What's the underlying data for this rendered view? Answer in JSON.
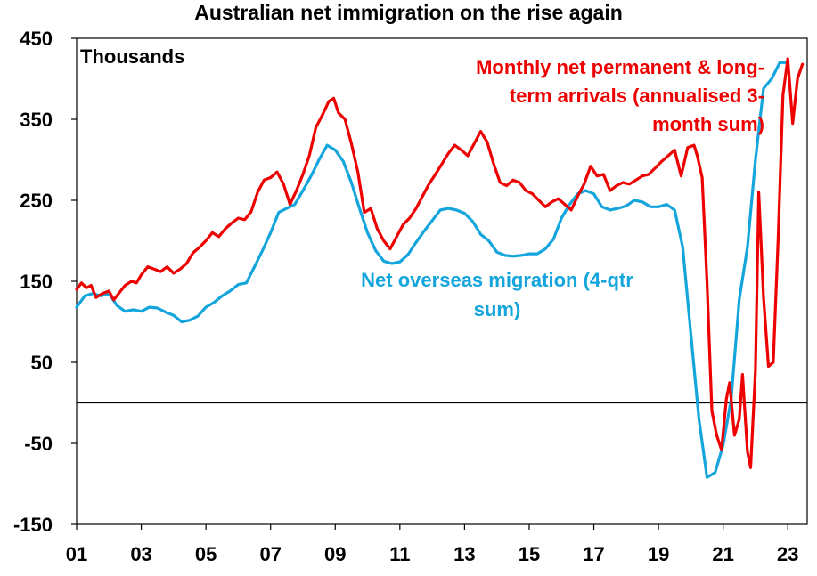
{
  "chart_data": {
    "type": "line",
    "title": "Australian net immigration on the rise again",
    "unit_label": "Thousands",
    "xlabel": "",
    "ylabel": "",
    "ylim": [
      -150,
      450
    ],
    "xlim": [
      2001,
      2023.6
    ],
    "y_ticks": [
      450,
      350,
      250,
      150,
      50,
      -50,
      -150
    ],
    "y_tick_labels": [
      "450",
      "350",
      "250",
      "150",
      "50",
      "-50",
      "-150"
    ],
    "x_ticks": [
      2001,
      2003,
      2005,
      2007,
      2009,
      2011,
      2013,
      2015,
      2017,
      2019,
      2021,
      2023
    ],
    "x_tick_labels": [
      "01",
      "03",
      "05",
      "07",
      "09",
      "11",
      "13",
      "15",
      "17",
      "19",
      "21",
      "23"
    ],
    "zero_line": true,
    "grid": false,
    "series": [
      {
        "name": "Monthly net permanent & long-term arrivals (annualised 3-month sum)",
        "label_lines": [
          "Monthly net permanent & long-",
          "term arrivals (annualised 3-",
          "month sum)"
        ],
        "color": "#ee0000",
        "x": [
          2001.0,
          2001.15,
          2001.3,
          2001.45,
          2001.6,
          2001.8,
          2002.0,
          2002.15,
          2002.3,
          2002.5,
          2002.7,
          2002.85,
          2003.0,
          2003.2,
          2003.4,
          2003.6,
          2003.8,
          2004.0,
          2004.2,
          2004.4,
          2004.6,
          2004.8,
          2005.0,
          2005.2,
          2005.4,
          2005.6,
          2005.8,
          2006.0,
          2006.2,
          2006.4,
          2006.6,
          2006.8,
          2007.0,
          2007.2,
          2007.4,
          2007.6,
          2007.8,
          2008.0,
          2008.2,
          2008.4,
          2008.6,
          2008.8,
          2008.95,
          2009.1,
          2009.3,
          2009.5,
          2009.7,
          2009.9,
          2010.1,
          2010.3,
          2010.5,
          2010.7,
          2010.9,
          2011.1,
          2011.3,
          2011.5,
          2011.7,
          2011.9,
          2012.1,
          2012.3,
          2012.5,
          2012.7,
          2012.9,
          2013.1,
          2013.3,
          2013.5,
          2013.7,
          2013.9,
          2014.1,
          2014.3,
          2014.5,
          2014.7,
          2014.9,
          2015.1,
          2015.3,
          2015.5,
          2015.7,
          2015.9,
          2016.1,
          2016.3,
          2016.5,
          2016.7,
          2016.9,
          2017.1,
          2017.3,
          2017.5,
          2017.7,
          2017.9,
          2018.1,
          2018.3,
          2018.5,
          2018.7,
          2018.9,
          2019.1,
          2019.3,
          2019.5,
          2019.7,
          2019.9,
          2020.1,
          2020.2,
          2020.35,
          2020.5,
          2020.65,
          2020.8,
          2020.95,
          2021.1,
          2021.2,
          2021.35,
          2021.5,
          2021.6,
          2021.75,
          2021.85,
          2022.0,
          2022.1,
          2022.25,
          2022.4,
          2022.55,
          2022.7,
          2022.85,
          2023.0,
          2023.15,
          2023.3,
          2023.45
        ],
        "values": [
          140,
          148,
          142,
          145,
          130,
          135,
          138,
          127,
          135,
          145,
          150,
          148,
          158,
          168,
          165,
          162,
          168,
          160,
          165,
          172,
          185,
          192,
          200,
          210,
          205,
          215,
          222,
          228,
          226,
          236,
          260,
          275,
          278,
          285,
          270,
          245,
          262,
          282,
          305,
          340,
          355,
          372,
          376,
          358,
          350,
          320,
          285,
          235,
          240,
          215,
          200,
          190,
          205,
          220,
          228,
          240,
          255,
          270,
          282,
          295,
          308,
          318,
          312,
          305,
          320,
          335,
          322,
          295,
          272,
          268,
          275,
          272,
          262,
          258,
          250,
          242,
          248,
          252,
          245,
          238,
          255,
          270,
          292,
          280,
          282,
          262,
          268,
          272,
          270,
          275,
          280,
          282,
          290,
          298,
          305,
          312,
          280,
          315,
          318,
          305,
          278,
          150,
          -10,
          -40,
          -58,
          5,
          25,
          -40,
          -20,
          35,
          -60,
          -80,
          40,
          260,
          130,
          45,
          50,
          200,
          380,
          425,
          345,
          400,
          418
        ]
      },
      {
        "name": "Net overseas migration (4-qtr sum)",
        "label_lines": [
          "Net overseas migration (4-qtr",
          "sum)"
        ],
        "color": "#14a5dc",
        "x": [
          2001.0,
          2001.25,
          2001.5,
          2001.75,
          2002.0,
          2002.25,
          2002.5,
          2002.75,
          2003.0,
          2003.25,
          2003.5,
          2003.75,
          2004.0,
          2004.25,
          2004.5,
          2004.75,
          2005.0,
          2005.25,
          2005.5,
          2005.75,
          2006.0,
          2006.25,
          2006.5,
          2006.75,
          2007.0,
          2007.25,
          2007.5,
          2007.75,
          2008.0,
          2008.25,
          2008.5,
          2008.75,
          2009.0,
          2009.25,
          2009.5,
          2009.75,
          2010.0,
          2010.25,
          2010.5,
          2010.75,
          2011.0,
          2011.25,
          2011.5,
          2011.75,
          2012.0,
          2012.25,
          2012.5,
          2012.75,
          2013.0,
          2013.25,
          2013.5,
          2013.75,
          2014.0,
          2014.25,
          2014.5,
          2014.75,
          2015.0,
          2015.25,
          2015.5,
          2015.75,
          2016.0,
          2016.25,
          2016.5,
          2016.75,
          2017.0,
          2017.25,
          2017.5,
          2017.75,
          2018.0,
          2018.25,
          2018.5,
          2018.75,
          2019.0,
          2019.25,
          2019.5,
          2019.75,
          2020.0,
          2020.25,
          2020.5,
          2020.75,
          2021.0,
          2021.25,
          2021.5,
          2021.75,
          2022.0,
          2022.25,
          2022.5,
          2022.75,
          2023.0
        ],
        "values": [
          118,
          132,
          135,
          132,
          135,
          120,
          113,
          115,
          113,
          118,
          117,
          112,
          108,
          100,
          102,
          107,
          118,
          124,
          132,
          138,
          146,
          148,
          168,
          188,
          210,
          235,
          240,
          245,
          262,
          280,
          300,
          318,
          312,
          298,
          272,
          240,
          210,
          188,
          175,
          172,
          174,
          183,
          198,
          212,
          225,
          238,
          240,
          238,
          234,
          224,
          208,
          200,
          186,
          182,
          181,
          182,
          184,
          184,
          190,
          202,
          228,
          245,
          258,
          262,
          258,
          242,
          238,
          240,
          243,
          250,
          248,
          242,
          242,
          245,
          238,
          192,
          85,
          -20,
          -92,
          -86,
          -52,
          5,
          128,
          192,
          300,
          388,
          400,
          420,
          420
        ]
      }
    ]
  }
}
